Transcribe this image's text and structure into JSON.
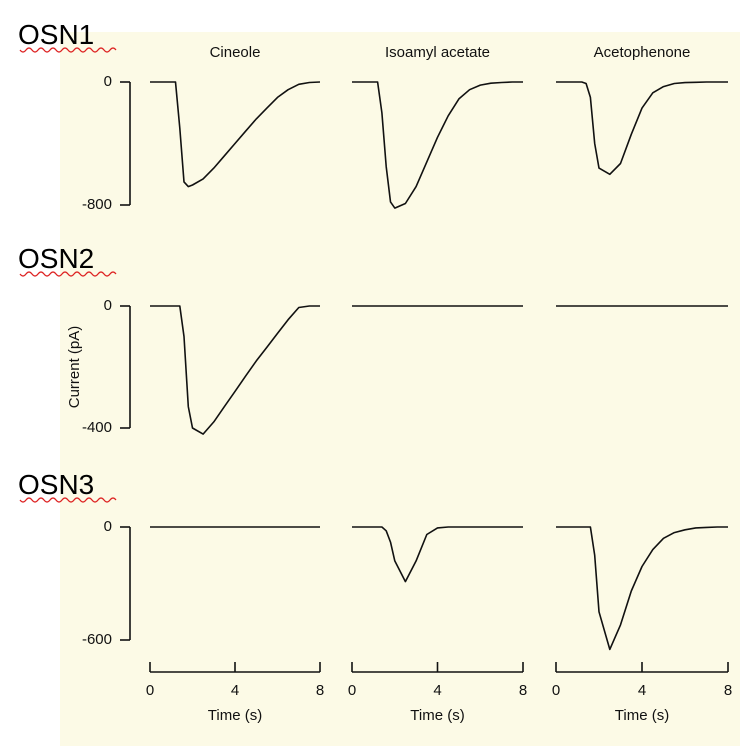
{
  "chart_data": [
    {
      "type": "line",
      "label": "OSN1",
      "title": "Cineole",
      "color": "#111111",
      "x": [
        0,
        1,
        1.2,
        1.4,
        1.6,
        1.8,
        2,
        2.5,
        3,
        3.5,
        4,
        4.5,
        5,
        5.5,
        6,
        6.5,
        7,
        7.5,
        8
      ],
      "values": [
        0,
        0,
        0,
        -300,
        -650,
        -680,
        -670,
        -630,
        -560,
        -480,
        -400,
        -320,
        -240,
        -170,
        -100,
        -50,
        -15,
        -3,
        0
      ],
      "xlim": [
        0,
        8
      ],
      "ylim": [
        -800,
        0
      ],
      "yticks": [
        0,
        -800
      ]
    },
    {
      "type": "line",
      "title": "Isoamyl acetate",
      "color": "#111111",
      "x": [
        0,
        1,
        1.2,
        1.4,
        1.6,
        1.8,
        2,
        2.5,
        3,
        3.5,
        4,
        4.5,
        5,
        5.5,
        6,
        6.5,
        7,
        7.5,
        8
      ],
      "values": [
        0,
        0,
        0,
        -200,
        -550,
        -780,
        -820,
        -790,
        -680,
        -520,
        -360,
        -220,
        -110,
        -50,
        -20,
        -8,
        -3,
        0,
        0
      ],
      "xlim": [
        0,
        8
      ],
      "ylim": [
        -800,
        0
      ]
    },
    {
      "type": "line",
      "title": "Acetophenone",
      "color": "#111111",
      "x": [
        0,
        1,
        1.2,
        1.4,
        1.6,
        1.8,
        2,
        2.5,
        3,
        3.5,
        4,
        4.5,
        5,
        5.5,
        6,
        6.5,
        7,
        7.5,
        8
      ],
      "values": [
        0,
        0,
        0,
        -10,
        -100,
        -400,
        -560,
        -600,
        -530,
        -340,
        -170,
        -70,
        -30,
        -10,
        -4,
        -2,
        0,
        0,
        0
      ],
      "xlim": [
        0,
        8
      ],
      "ylim": [
        -800,
        0
      ]
    },
    {
      "type": "line",
      "label": "OSN2",
      "ylabel": "Current (pA)",
      "color": "#111111",
      "x": [
        0,
        1,
        1.2,
        1.4,
        1.6,
        1.8,
        2,
        2.5,
        3,
        3.5,
        4,
        4.5,
        5,
        5.5,
        6,
        6.5,
        7,
        7.5,
        8
      ],
      "values": [
        0,
        0,
        0,
        0,
        -100,
        -330,
        -400,
        -420,
        -380,
        -330,
        -280,
        -230,
        -180,
        -135,
        -90,
        -45,
        -5,
        0,
        0
      ],
      "xlim": [
        0,
        8
      ],
      "ylim": [
        -400,
        0
      ],
      "yticks": [
        0,
        -400
      ]
    },
    {
      "type": "line",
      "color": "#111111",
      "x": [
        0,
        2,
        4,
        6,
        8
      ],
      "values": [
        0,
        0,
        0,
        0,
        0
      ],
      "xlim": [
        0,
        8
      ],
      "ylim": [
        -400,
        0
      ]
    },
    {
      "type": "line",
      "color": "#111111",
      "x": [
        0,
        2,
        4,
        6,
        8
      ],
      "values": [
        0,
        0,
        0,
        0,
        0
      ],
      "xlim": [
        0,
        8
      ],
      "ylim": [
        -400,
        0
      ]
    },
    {
      "type": "line",
      "label": "OSN3",
      "xlabel": "Time (s)",
      "color": "#111111",
      "x": [
        0,
        2,
        4,
        6,
        8
      ],
      "values": [
        0,
        0,
        0,
        0,
        0
      ],
      "xlim": [
        0,
        8
      ],
      "ylim": [
        -600,
        0
      ],
      "yticks": [
        0,
        -600
      ],
      "xticks": [
        0,
        4,
        8
      ]
    },
    {
      "type": "line",
      "xlabel": "Time (s)",
      "color": "#111111",
      "x": [
        0,
        1,
        1.2,
        1.4,
        1.6,
        1.8,
        2,
        2.5,
        3,
        3.5,
        4,
        4.5,
        5,
        5.5,
        6,
        6.5,
        7,
        7.5,
        8
      ],
      "values": [
        0,
        0,
        0,
        0,
        -20,
        -80,
        -180,
        -290,
        -180,
        -40,
        -5,
        0,
        0,
        0,
        0,
        0,
        0,
        0,
        0
      ],
      "xlim": [
        0,
        8
      ],
      "ylim": [
        -600,
        0
      ],
      "xticks": [
        0,
        4,
        8
      ]
    },
    {
      "type": "line",
      "xlabel": "Time (s)",
      "color": "#111111",
      "x": [
        0,
        1,
        1.2,
        1.4,
        1.6,
        1.8,
        2,
        2.5,
        3,
        3.5,
        4,
        4.5,
        5,
        5.5,
        6,
        6.5,
        7,
        7.5,
        8
      ],
      "values": [
        0,
        0,
        0,
        0,
        0,
        -150,
        -450,
        -650,
        -520,
        -340,
        -210,
        -120,
        -60,
        -30,
        -15,
        -5,
        -2,
        0,
        0
      ],
      "xlim": [
        0,
        8
      ],
      "ylim": [
        -600,
        0
      ],
      "xticks": [
        0,
        4,
        8
      ]
    }
  ]
}
